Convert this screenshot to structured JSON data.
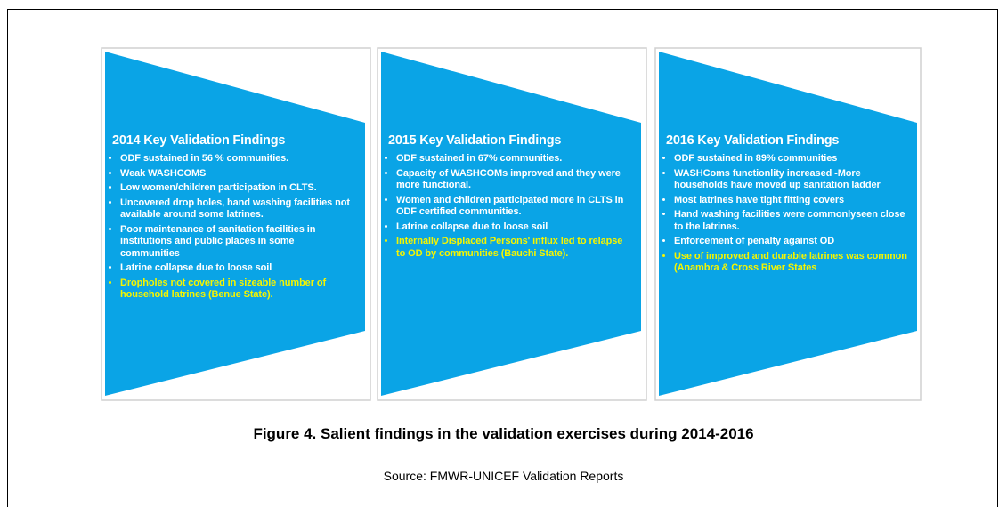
{
  "panels": [
    {
      "title": "2014 Key Validation Findings",
      "bullets": [
        "ODF sustained in 56 % communities.",
        "Weak WASHCOMS",
        "Low women/children participation in CLTS.",
        "Uncovered drop holes, hand washing facilities not available around some latrines.",
        "Poor maintenance of sanitation facilities in institutions and public places in some communities",
        "Latrine collapse due to loose soil"
      ],
      "highlighted_bullets": [
        "Dropholes not covered in sizeable number of household latrines (Benue State)."
      ]
    },
    {
      "title": "2015 Key Validation Findings",
      "bullets": [
        "ODF sustained in 67% communities.",
        "Capacity of WASHCOMs improved and they were more functional.",
        "Women and children participated more in CLTS in ODF certified communities.",
        "Latrine collapse due to loose soil"
      ],
      "highlighted_bullets": [
        "Internally Displaced Persons' influx led to relapse to OD by communities (Bauchi State)."
      ]
    },
    {
      "title": "2016 Key Validation Findings",
      "bullets": [
        "ODF sustained in 89% communities",
        "WASHComs functionlity increased   -More households have moved up sanitation ladder",
        "Most latrines have tight fitting covers",
        "Hand washing facilities were commonlyseen close to the latrines.",
        "Enforcement of penalty against OD"
      ],
      "highlighted_bullets": [
        "Use of improved and durable latrines was common (Anambra & Cross River States"
      ]
    }
  ],
  "caption": "Figure 4. Salient findings in the validation exercises during 2014-2016",
  "source": "Source: FMWR-UNICEF Validation Reports"
}
